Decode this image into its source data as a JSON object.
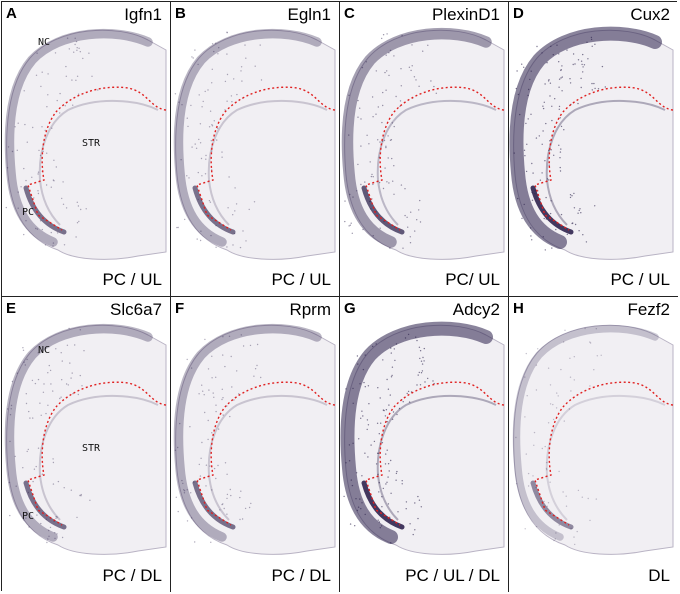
{
  "panels": [
    {
      "letter": "A",
      "gene": "Igfn1",
      "category": "PC / UL",
      "regions": [
        "NC",
        "STR",
        "PC"
      ],
      "intensity": "light",
      "stain": "#2a1f4a"
    },
    {
      "letter": "B",
      "gene": "Egln1",
      "category": "PC / UL",
      "regions": [],
      "intensity": "light",
      "stain": "#2a1f4a"
    },
    {
      "letter": "C",
      "gene": "PlexinD1",
      "category": "PC/ UL",
      "regions": [],
      "intensity": "medium",
      "stain": "#2a1f4a"
    },
    {
      "letter": "D",
      "gene": "Cux2",
      "category": "PC / UL",
      "regions": [],
      "intensity": "strong",
      "stain": "#2a1f4a"
    },
    {
      "letter": "E",
      "gene": "Slc6a7",
      "category": "PC / DL",
      "regions": [
        "NC",
        "STR",
        "PC"
      ],
      "intensity": "light",
      "stain": "#2a1f4a"
    },
    {
      "letter": "F",
      "gene": "Rprm",
      "category": "PC / DL",
      "regions": [],
      "intensity": "light",
      "stain": "#2a1f4a"
    },
    {
      "letter": "G",
      "gene": "Adcy2",
      "category": "PC / UL / DL",
      "regions": [],
      "intensity": "strong",
      "stain": "#2a1f4a"
    },
    {
      "letter": "H",
      "gene": "Fezf2",
      "category": "DL",
      "regions": [],
      "intensity": "faint",
      "stain": "#2a1f4a"
    }
  ],
  "colors": {
    "boundary": "#e02020",
    "tissue_bg": "#f1eff3",
    "border": "#222222"
  }
}
